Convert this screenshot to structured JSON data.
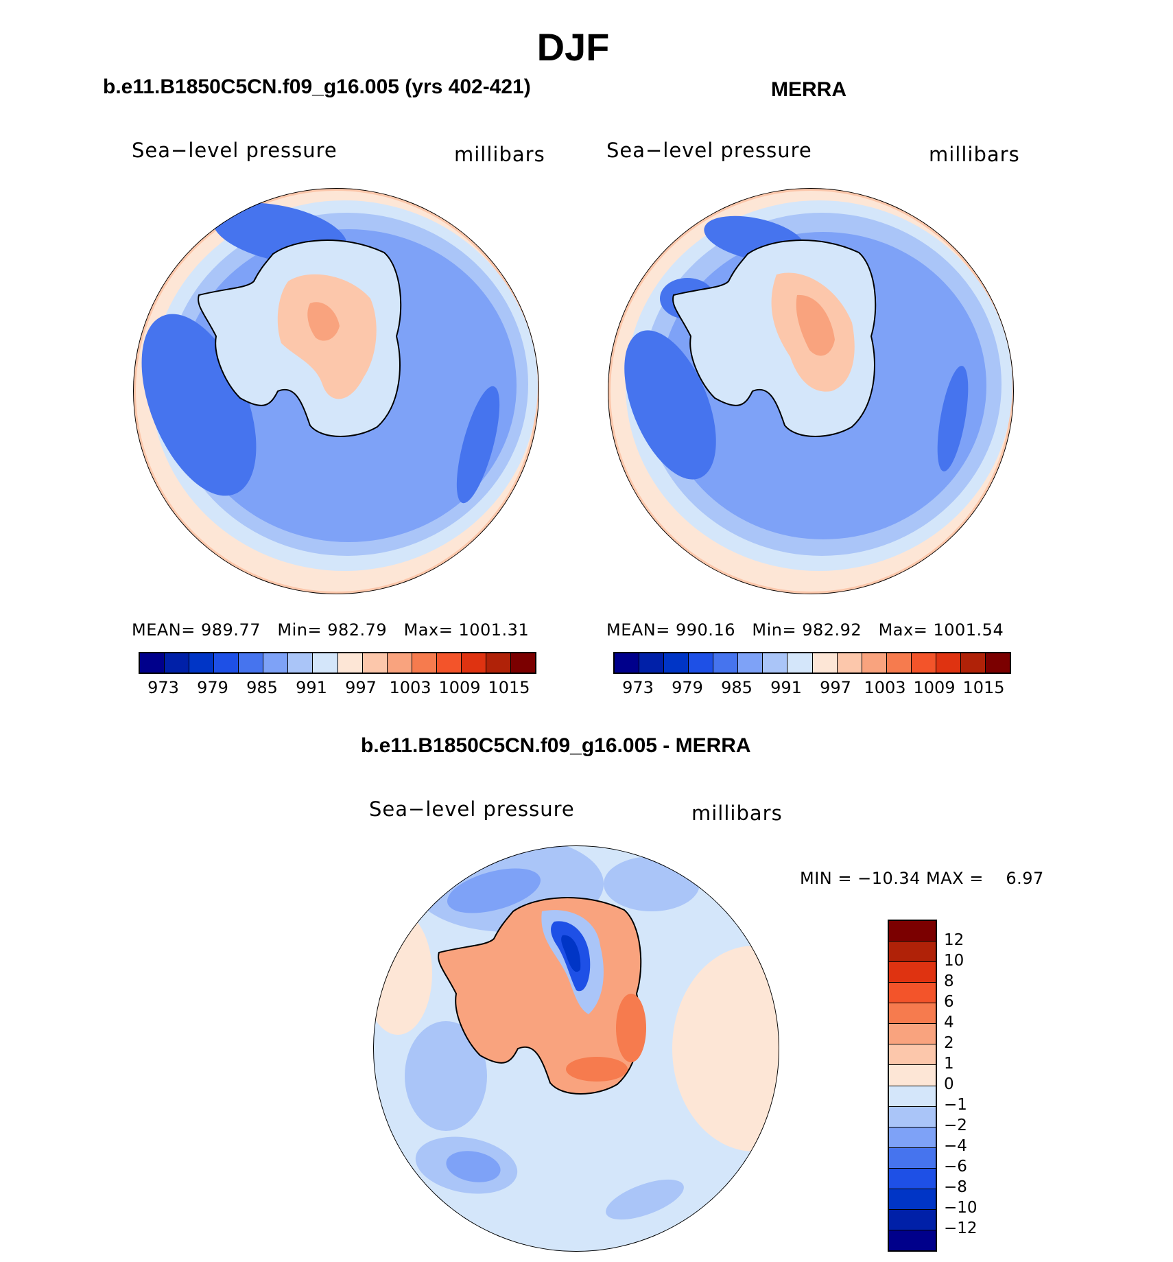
{
  "title": "DJF",
  "panels": [
    {
      "title": "b.e11.B1850C5CN.f09_g16.005 (yrs 402-421)",
      "variable": "Sea−level pressure",
      "units": "millibars",
      "stats": {
        "mean_label": "MEAN=",
        "mean": "989.77",
        "min_label": "Min=",
        "min": "982.79",
        "max_label": "Max=",
        "max": "1001.31"
      }
    },
    {
      "title": "MERRA",
      "variable": "Sea−level pressure",
      "units": "millibars",
      "stats": {
        "mean_label": "MEAN=",
        "mean": "990.16",
        "min_label": "Min=",
        "min": "982.92",
        "max_label": "Max=",
        "max": "1001.54"
      }
    }
  ],
  "diff_panel": {
    "title": "b.e11.B1850C5CN.f09_g16.005 - MERRA",
    "variable": "Sea−level pressure",
    "units": "millibars",
    "minmax": "MIN = −10.34 MAX =    6.97"
  },
  "colorbar_abs": {
    "labels": [
      "973",
      "979",
      "985",
      "991",
      "997",
      "1003",
      "1009",
      "1015"
    ],
    "colors": [
      "#00008b",
      "#0020a8",
      "#0035c6",
      "#1e50e6",
      "#4674ee",
      "#7ea2f7",
      "#aac5f8",
      "#d4e6fa",
      "#fde6d6",
      "#fcc7ab",
      "#f9a37e",
      "#f67b4e",
      "#f3542a",
      "#df3311",
      "#b02208",
      "#7b0000"
    ]
  },
  "colorbar_diff": {
    "labels": [
      "12",
      "10",
      "8",
      "6",
      "4",
      "2",
      "1",
      "0",
      "−1",
      "−2",
      "−4",
      "−6",
      "−8",
      "−10",
      "−12"
    ],
    "colors": [
      "#7b0000",
      "#b02208",
      "#df3311",
      "#f3542a",
      "#f67b4e",
      "#f9a37e",
      "#fcc7ab",
      "#fde6d6",
      "#d4e6fa",
      "#aac5f8",
      "#7ea2f7",
      "#4674ee",
      "#1e50e6",
      "#0035c6",
      "#0020a8",
      "#00008b"
    ]
  },
  "map_palette": {
    "outer_warm": "#fcc7ab",
    "outer_light": "#fde6d6",
    "ring_pale": "#d4e6fa",
    "ring_mid": "#aac5f8",
    "ring_blue": "#7ea2f7",
    "low_blue": "#4674ee",
    "land_pale": "#d4e6fa",
    "land_warm": "#fcc7ab",
    "land_hot": "#f9a37e",
    "diff_pos": "#f9a37e",
    "diff_pos2": "#f67b4e",
    "diff_neg": "#1e50e6",
    "diff_neg2": "#0035c6"
  }
}
